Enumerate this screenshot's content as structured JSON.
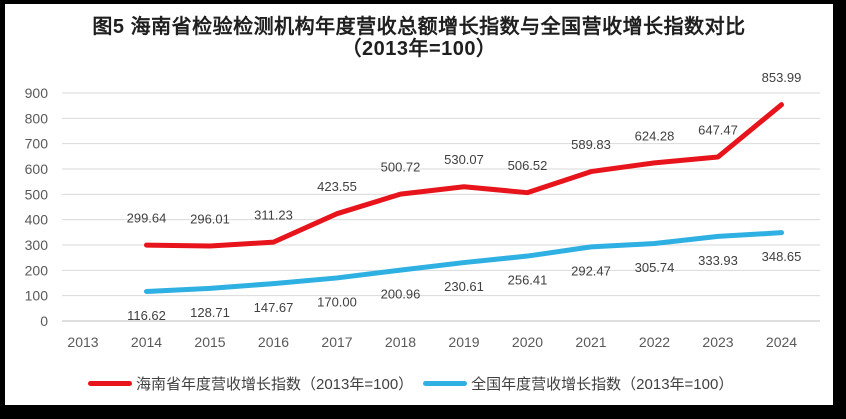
{
  "title": {
    "line1": "图5  海南省检验检测机构年度营收总额增长指数与全国营收增长指数对比",
    "line2": "（2013年=100）"
  },
  "colors": {
    "hainan_line": "#e8141c",
    "national_line": "#2fb0e2",
    "gridline": "#d9d9d9",
    "axis_line": "#bfbfbf",
    "data_label_text": "#404040",
    "tick_text": "#595959",
    "frame": "#000000",
    "background": "#ffffff"
  },
  "chart_data": {
    "type": "line",
    "title": "图5 海南省检验检测机构年度营收总额增长指数与全国营收增长指数对比（2013年=100）",
    "xlabel": "",
    "ylabel": "",
    "x_tick_labels": [
      "2013",
      "2014",
      "2015",
      "2016",
      "2017",
      "2018",
      "2019",
      "2020",
      "2021",
      "2022",
      "2023",
      "2024"
    ],
    "y_tick_labels": [
      "0",
      "100",
      "200",
      "300",
      "400",
      "500",
      "600",
      "700",
      "800",
      "900"
    ],
    "ylim": [
      0,
      900
    ],
    "grid": true,
    "legend_position": "bottom",
    "series": [
      {
        "name": "海南省年度营收增长指数（2013年=100）",
        "color": "#e8141c",
        "years": [
          2014,
          2015,
          2016,
          2017,
          2018,
          2019,
          2020,
          2021,
          2022,
          2023,
          2024
        ],
        "values": [
          299.64,
          296.01,
          311.23,
          423.55,
          500.72,
          530.07,
          506.52,
          589.83,
          624.28,
          647.47,
          853.99
        ],
        "labels": [
          "299.64",
          "296.01",
          "311.23",
          "423.55",
          "500.72",
          "530.07",
          "506.52",
          "589.83",
          "624.28",
          "647.47",
          "853.99"
        ],
        "label_offset": -27
      },
      {
        "name": "全国年度营收增长指数（2013年=100）",
        "color": "#2fb0e2",
        "years": [
          2014,
          2015,
          2016,
          2017,
          2018,
          2019,
          2020,
          2021,
          2022,
          2023,
          2024
        ],
        "values": [
          116.62,
          128.71,
          147.67,
          170.0,
          200.96,
          230.61,
          256.41,
          292.47,
          305.74,
          333.93,
          348.65
        ],
        "labels": [
          "116.62",
          "128.71",
          "147.67",
          "170.00",
          "200.96",
          "230.61",
          "256.41",
          "292.47",
          "305.74",
          "333.93",
          "348.65"
        ],
        "label_offset": 24
      }
    ]
  }
}
